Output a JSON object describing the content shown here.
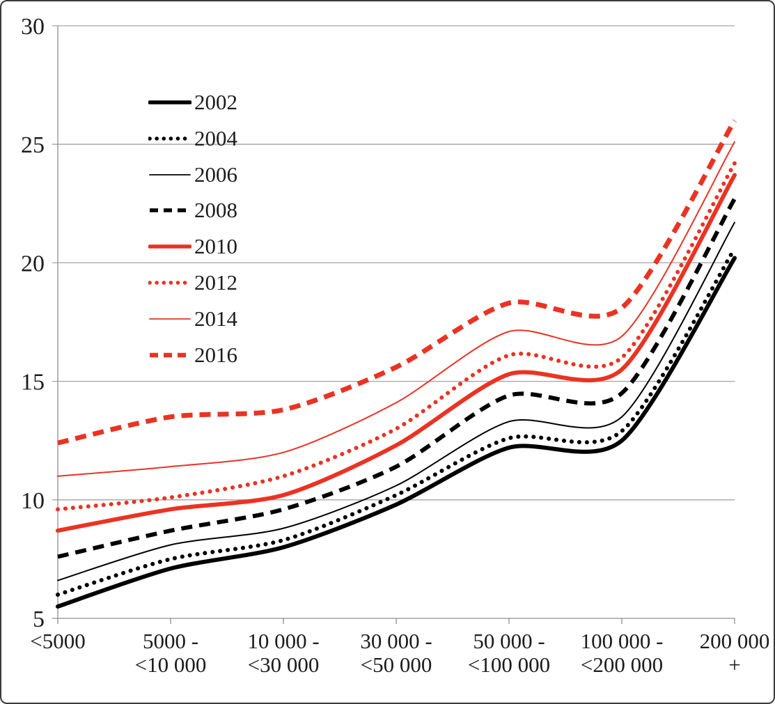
{
  "figure": {
    "background": "#ffffff",
    "border_color": "#3a3a3a"
  },
  "chart_data": {
    "type": "line",
    "title": "",
    "xlabel": "",
    "ylabel": "",
    "grid": "horizontal-only",
    "legend_position": "inside-upper-left",
    "axis_color": "#8f8f8f",
    "gridline_color": "#a3a3a3",
    "text_color": "#1c1c1c",
    "accent_red": "#ea3323",
    "accent_black": "#000000",
    "ylim": [
      5,
      30
    ],
    "yticks": [
      30,
      25,
      20,
      15,
      10,
      5
    ],
    "categories": [
      "<5000",
      "5000 - <10 000",
      "10 000 - <30 000",
      "30 000 - <50 000",
      "50 000 - <100 000",
      "100 000 - <200 000",
      "200 000 +"
    ],
    "x_tick_label_lines": [
      [
        "<5000",
        ""
      ],
      [
        "5000 -",
        "<10 000"
      ],
      [
        "10 000 -",
        "<30 000"
      ],
      [
        "30 000 -",
        "<50 000"
      ],
      [
        "50 000 -",
        "<100 000"
      ],
      [
        "100 000 -",
        "<200 000"
      ],
      [
        "200 000",
        "+"
      ]
    ],
    "series": [
      {
        "name": "2002",
        "color": "#000000",
        "dash": "solid",
        "weight": "thick",
        "values": [
          5.5,
          7.1,
          8.0,
          9.8,
          12.2,
          12.5,
          20.2
        ]
      },
      {
        "name": "2004",
        "color": "#000000",
        "dash": "dot",
        "weight": "thick",
        "values": [
          6.0,
          7.5,
          8.3,
          10.2,
          12.6,
          12.9,
          20.6
        ]
      },
      {
        "name": "2006",
        "color": "#000000",
        "dash": "solid",
        "weight": "thin",
        "values": [
          6.6,
          8.1,
          8.8,
          10.6,
          13.3,
          13.5,
          21.7
        ]
      },
      {
        "name": "2008",
        "color": "#000000",
        "dash": "dash",
        "weight": "thick",
        "values": [
          7.6,
          8.7,
          9.6,
          11.4,
          14.4,
          14.5,
          22.7
        ]
      },
      {
        "name": "2010",
        "color": "#ea3323",
        "dash": "solid",
        "weight": "thick",
        "values": [
          8.7,
          9.6,
          10.2,
          12.3,
          15.3,
          15.5,
          23.7
        ]
      },
      {
        "name": "2012",
        "color": "#ea3323",
        "dash": "dot",
        "weight": "thick",
        "values": [
          9.6,
          10.1,
          11.0,
          13.0,
          16.1,
          16.0,
          24.2
        ]
      },
      {
        "name": "2014",
        "color": "#ea3323",
        "dash": "solid",
        "weight": "thin",
        "values": [
          11.0,
          11.4,
          12.0,
          14.1,
          17.1,
          16.9,
          25.1
        ]
      },
      {
        "name": "2016",
        "color": "#ea3323",
        "dash": "dash",
        "weight": "thick",
        "values": [
          12.4,
          13.5,
          13.8,
          15.6,
          18.3,
          18.1,
          26.0
        ]
      }
    ]
  }
}
